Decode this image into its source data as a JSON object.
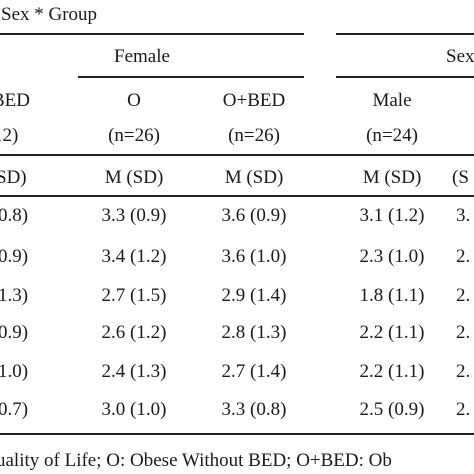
{
  "table": {
    "top_header": "Sex * Group",
    "group_headers": [
      "Female",
      "Sex"
    ],
    "cols": [
      {
        "name": "BED",
        "n": "12)",
        "stat": "SD)"
      },
      {
        "name": "O",
        "n": "(n=26)",
        "stat": "M (SD)"
      },
      {
        "name": "O+BED",
        "n": "(n=26)",
        "stat": "M (SD)"
      },
      {
        "name": "Male",
        "n": "(n=24)",
        "stat": "M (SD)"
      },
      {
        "name": "",
        "n": "",
        "stat": "(S"
      }
    ],
    "rows": [
      [
        "0.8)",
        "3.3 (0.9)",
        "3.6 (0.9)",
        "3.1 (1.2)",
        "3."
      ],
      [
        "0.9)",
        "3.4 (1.2)",
        "3.6 (1.0)",
        "2.3 (1.0)",
        "2."
      ],
      [
        "1.3)",
        "2.7 (1.5)",
        "2.9 (1.4)",
        "1.8 (1.1)",
        "2."
      ],
      [
        "0.9)",
        "2.6 (1.2)",
        "2.8 (1.3)",
        "2.2 (1.1)",
        "2."
      ],
      [
        "1.0)",
        "2.4 (1.3)",
        "2.7 (1.4)",
        "2.2 (1.1)",
        "2."
      ],
      [
        "0.7)",
        "3.0 (1.0)",
        "3.3 (0.8)",
        "2.5 (0.9)",
        "2."
      ]
    ],
    "footnote": "uality of Life; O: Obese Without BED; O+BED: Ob"
  }
}
